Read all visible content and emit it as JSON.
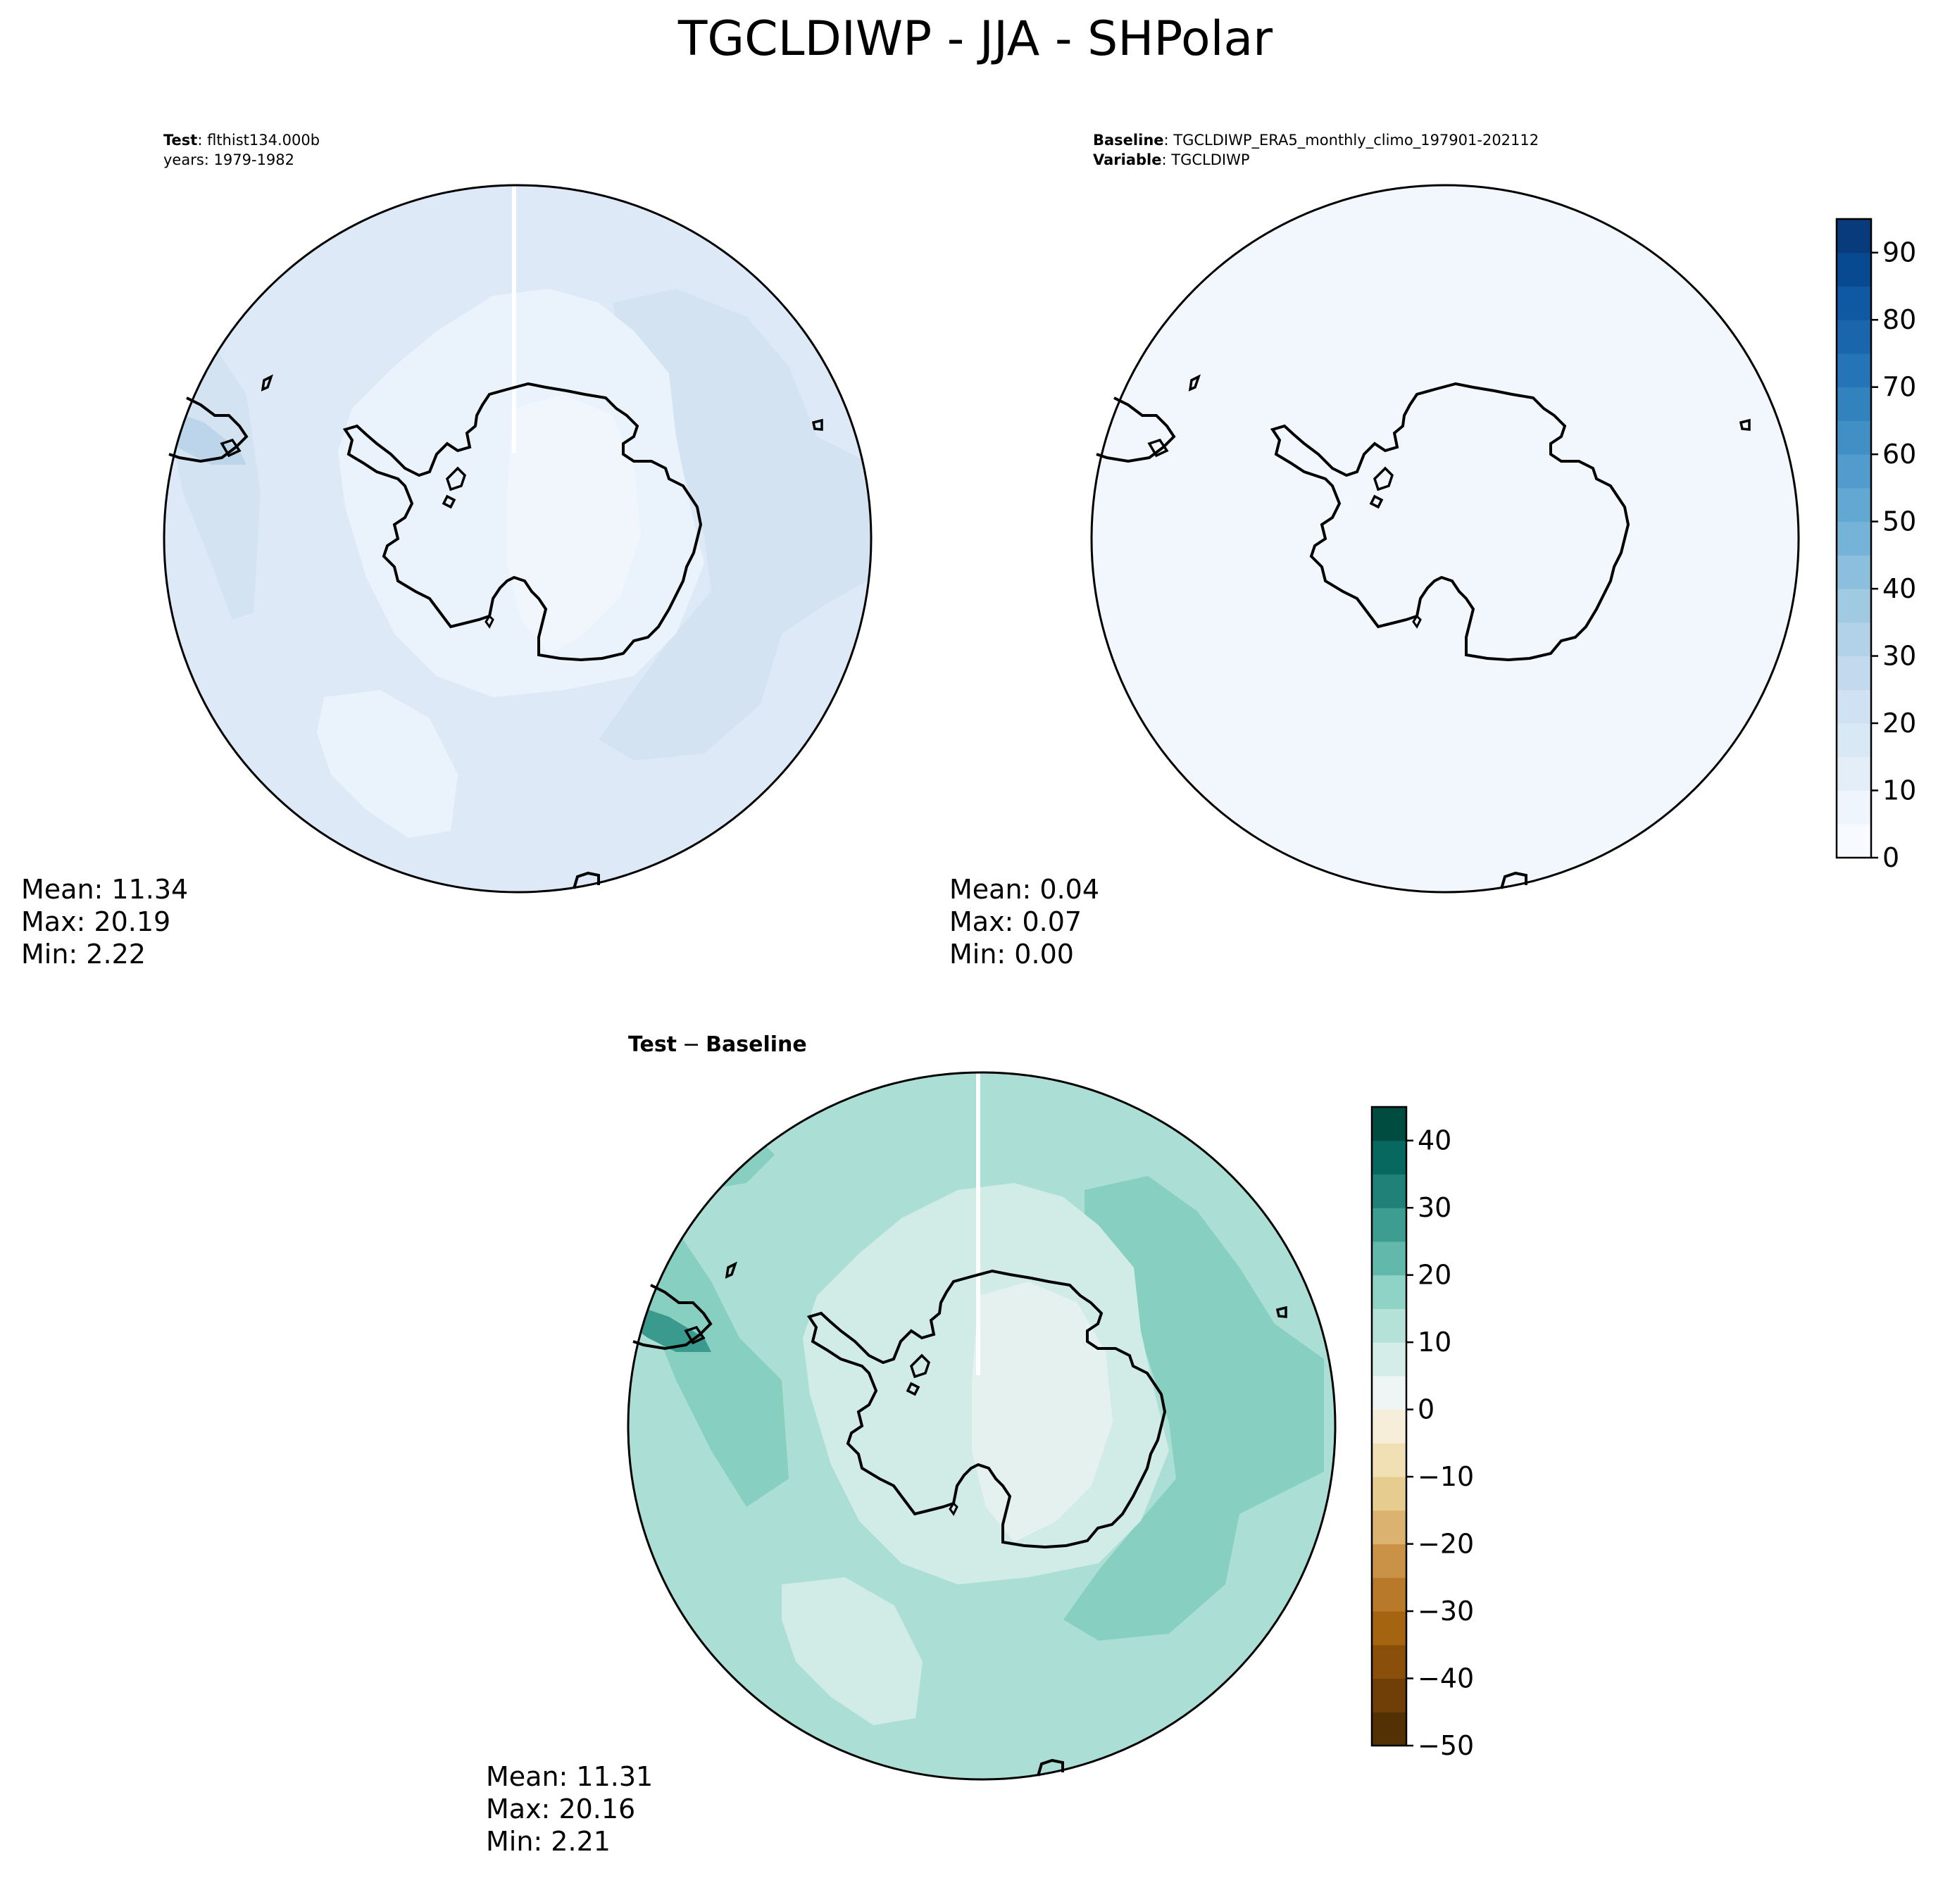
{
  "figure": {
    "title": "TGCLDIWP - JJA - SHPolar"
  },
  "panels": {
    "test": {
      "label_bold": "Test",
      "label_sep": ": ",
      "label_value": "flthist134.000b",
      "years": "years: 1979-1982",
      "stats": {
        "mean": "Mean: 11.34",
        "max": "Max: 20.19",
        "min": "Min:  2.22"
      }
    },
    "baseline": {
      "label_bold": "Baseline",
      "label_sep": ": ",
      "label_value": "TGCLDIWP_ERA5_monthly_climo_197901-202112",
      "variable_bold": "Variable",
      "variable_value": "TGCLDIWP",
      "stats": {
        "mean": "Mean:  0.04",
        "max": "Max:  0.07",
        "min": "Min:  0.00"
      }
    },
    "diff": {
      "title_part1": "Test",
      "title_minus": "−",
      "title_part2": "Baseline",
      "stats": {
        "mean": "Mean: 11.31",
        "max": "Max: 20.16",
        "min": "Min:  2.21"
      }
    }
  },
  "colorbars": {
    "abs": {
      "ticks": [
        "0",
        "10",
        "20",
        "30",
        "40",
        "50",
        "60",
        "70",
        "80",
        "90"
      ],
      "range": [
        0,
        95
      ],
      "levels": 19,
      "colormap": "Blues",
      "colors": [
        "#f7fbff",
        "#eef5fc",
        "#e3eef9",
        "#d9e8f5",
        "#cfe1f2",
        "#c2d9ee",
        "#b2d2e8",
        "#a0cae1",
        "#8bbfdd",
        "#75b4d8",
        "#62a8d2",
        "#519ccc",
        "#4090c5",
        "#3282be",
        "#2474b7",
        "#1966ad",
        "#0f59a3",
        "#084a91",
        "#083b7c"
      ]
    },
    "diff": {
      "ticks": [
        "40",
        "30",
        "20",
        "10",
        "0",
        "−10",
        "−20",
        "−30",
        "−40",
        "−50"
      ],
      "range": [
        -50,
        45
      ],
      "levels": 19,
      "colormap": "BrBG",
      "colors": [
        "#543005",
        "#6f3f07",
        "#8a500b",
        "#a5640f",
        "#b8792a",
        "#c99247",
        "#dbb26f",
        "#e7cc8f",
        "#f1e0b4",
        "#f6eed9",
        "#eef5f4",
        "#d5ede9",
        "#b4e2d9",
        "#8ed3c6",
        "#62b8ab",
        "#3d9d91",
        "#1f8177",
        "#06685e",
        "#004c40"
      ]
    }
  },
  "map_fields": {
    "test_background": "#dde9f6",
    "test_polar": "#eaf3fb",
    "test_highlights": "#d3e3f2",
    "baseline_fill": "#f2f7fd",
    "diff_background": "#abdfd5",
    "diff_polar": "#e4f1ef",
    "diff_mid": "#d1ece7",
    "diff_highlights": "#86cfc1",
    "diff_strong": "#3a9a8e",
    "meridian_line": "#ffffff"
  },
  "map_features": [
    "coastline",
    "Antarctica",
    "South America tip",
    "Africa tip",
    "islands"
  ]
}
